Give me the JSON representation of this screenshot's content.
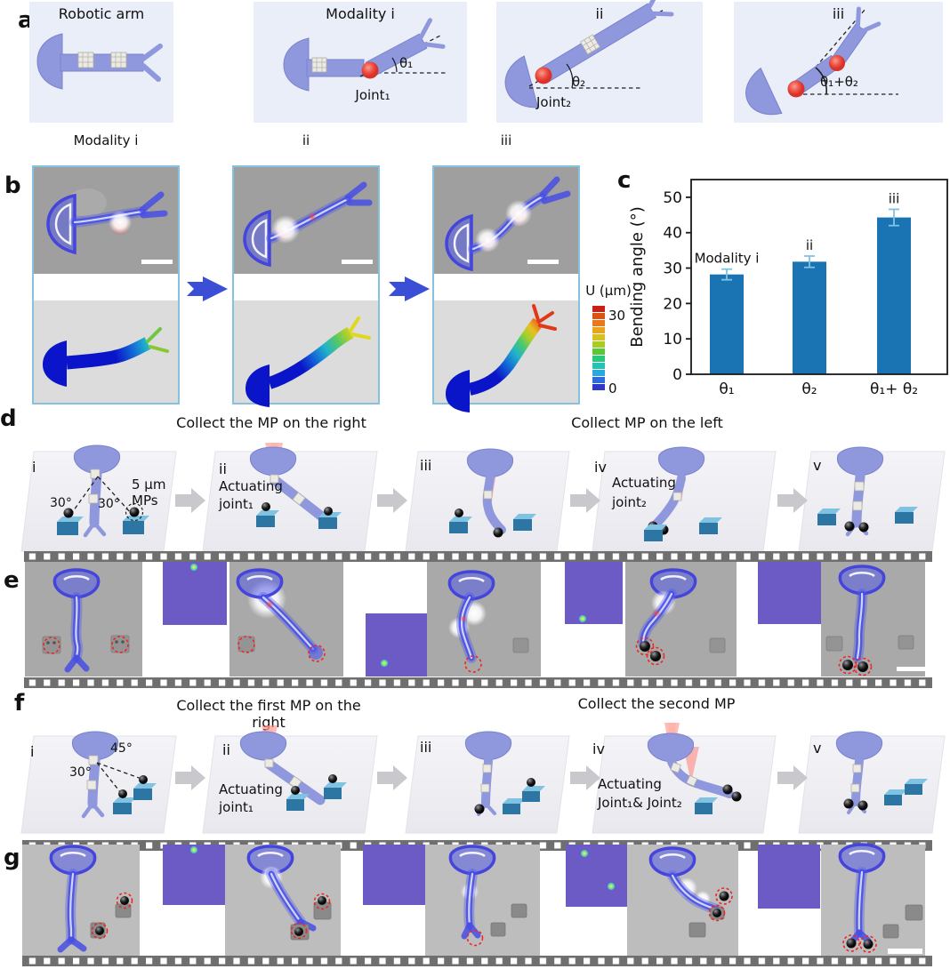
{
  "a": {
    "tag": "a",
    "box_titles": [
      "Robotic arm",
      "Modality i",
      "ii",
      "iii"
    ],
    "joint1": "Joint₁",
    "joint2": "Joint₂",
    "theta1": "θ₁",
    "theta2": "θ₂",
    "theta12": "θ₁+θ₂"
  },
  "b": {
    "tag": "b",
    "col_labels": [
      "Modality i",
      "ii",
      "iii"
    ],
    "colorbar": {
      "title": "U (μm)",
      "max": "30",
      "min": "0",
      "colors": [
        "#cc2016",
        "#dc5214",
        "#e87818",
        "#eca41c",
        "#d8c020",
        "#a8cc24",
        "#58c838",
        "#28c87c",
        "#24c4b4",
        "#28a8dc",
        "#2c6ce0",
        "#3038cc"
      ]
    }
  },
  "c": {
    "tag": "c"
  },
  "chart_data": {
    "type": "bar",
    "title": "",
    "xlabel": "",
    "ylabel": "Bending angle (°)",
    "categories": [
      "θ₁",
      "θ₂",
      "θ₁+ θ₂"
    ],
    "values": [
      28.2,
      31.8,
      44.3
    ],
    "errors": [
      1.5,
      1.6,
      2.3
    ],
    "bar_annotations": [
      "Modality i",
      "ii",
      "iii"
    ],
    "yticks": [
      0,
      10,
      20,
      30,
      40,
      50
    ],
    "ylim": [
      0,
      55
    ],
    "bar_color": "#1a73b2",
    "error_color": "#7fc3e2",
    "grid": false,
    "legend": "none"
  },
  "d": {
    "tag": "d",
    "caption_left": "Collect the MP on the right",
    "caption_right": "Collect  MP on the left",
    "steps": [
      "i",
      "ii",
      "iii",
      "iv",
      "v"
    ],
    "angle_left": "30°",
    "angle_right": "30°",
    "mp_line1": "5 μm",
    "mp_line2": "MPs",
    "act1_line1": "Actuating",
    "act1_line2": "joint₁",
    "act2_line1": "Actuating",
    "act2_line2": "joint₂"
  },
  "e": {
    "tag": "e"
  },
  "f": {
    "tag": "f",
    "caption_left": "Collect the first MP on the right",
    "caption_right": "Collect the second MP",
    "steps": [
      "i",
      "ii",
      "iii",
      "iv",
      "v"
    ],
    "angle_upper": "45°",
    "angle_lower": "30°",
    "act1_line1": "Actuating",
    "act1_line2": "joint₁",
    "act2_line1": "Actuating",
    "act2_line2": "Joint₁& Joint₂"
  },
  "g": {
    "tag": "g"
  }
}
